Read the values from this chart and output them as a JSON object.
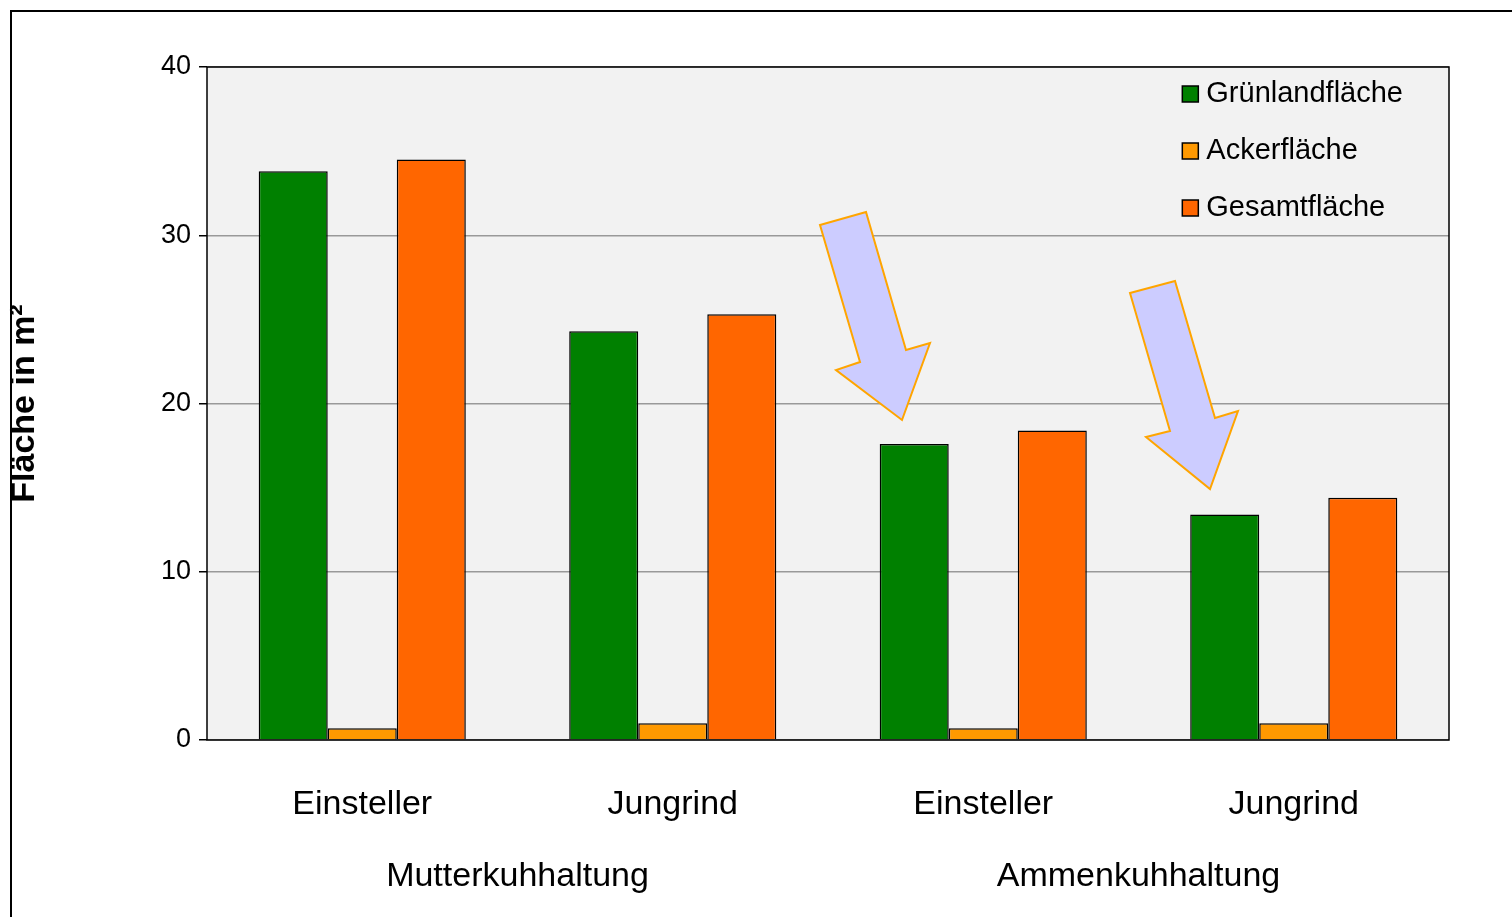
{
  "chart_data": {
    "type": "bar",
    "ylabel": "Fläche in m²",
    "categories": [
      "Einsteller",
      "Jungrind",
      "Einsteller",
      "Jungrind"
    ],
    "series": [
      {
        "name": "Grünlandfläche",
        "color": "#008000",
        "values": [
          33.8,
          24.3,
          17.6,
          13.4
        ]
      },
      {
        "name": "Ackerfläche",
        "color": "#ff9900",
        "values": [
          0.7,
          1.0,
          0.7,
          1.0
        ]
      },
      {
        "name": "Gesamtfläche",
        "color": "#ff6600",
        "values": [
          34.5,
          25.3,
          18.4,
          14.4
        ]
      }
    ],
    "ylim": [
      0,
      40
    ],
    "yticks": [
      0,
      10,
      20,
      30,
      40
    ],
    "grid": "y",
    "legend": "top right",
    "annotations": [
      "Mutterkuhhaltung",
      "Ammenkuhhaltung"
    ]
  }
}
